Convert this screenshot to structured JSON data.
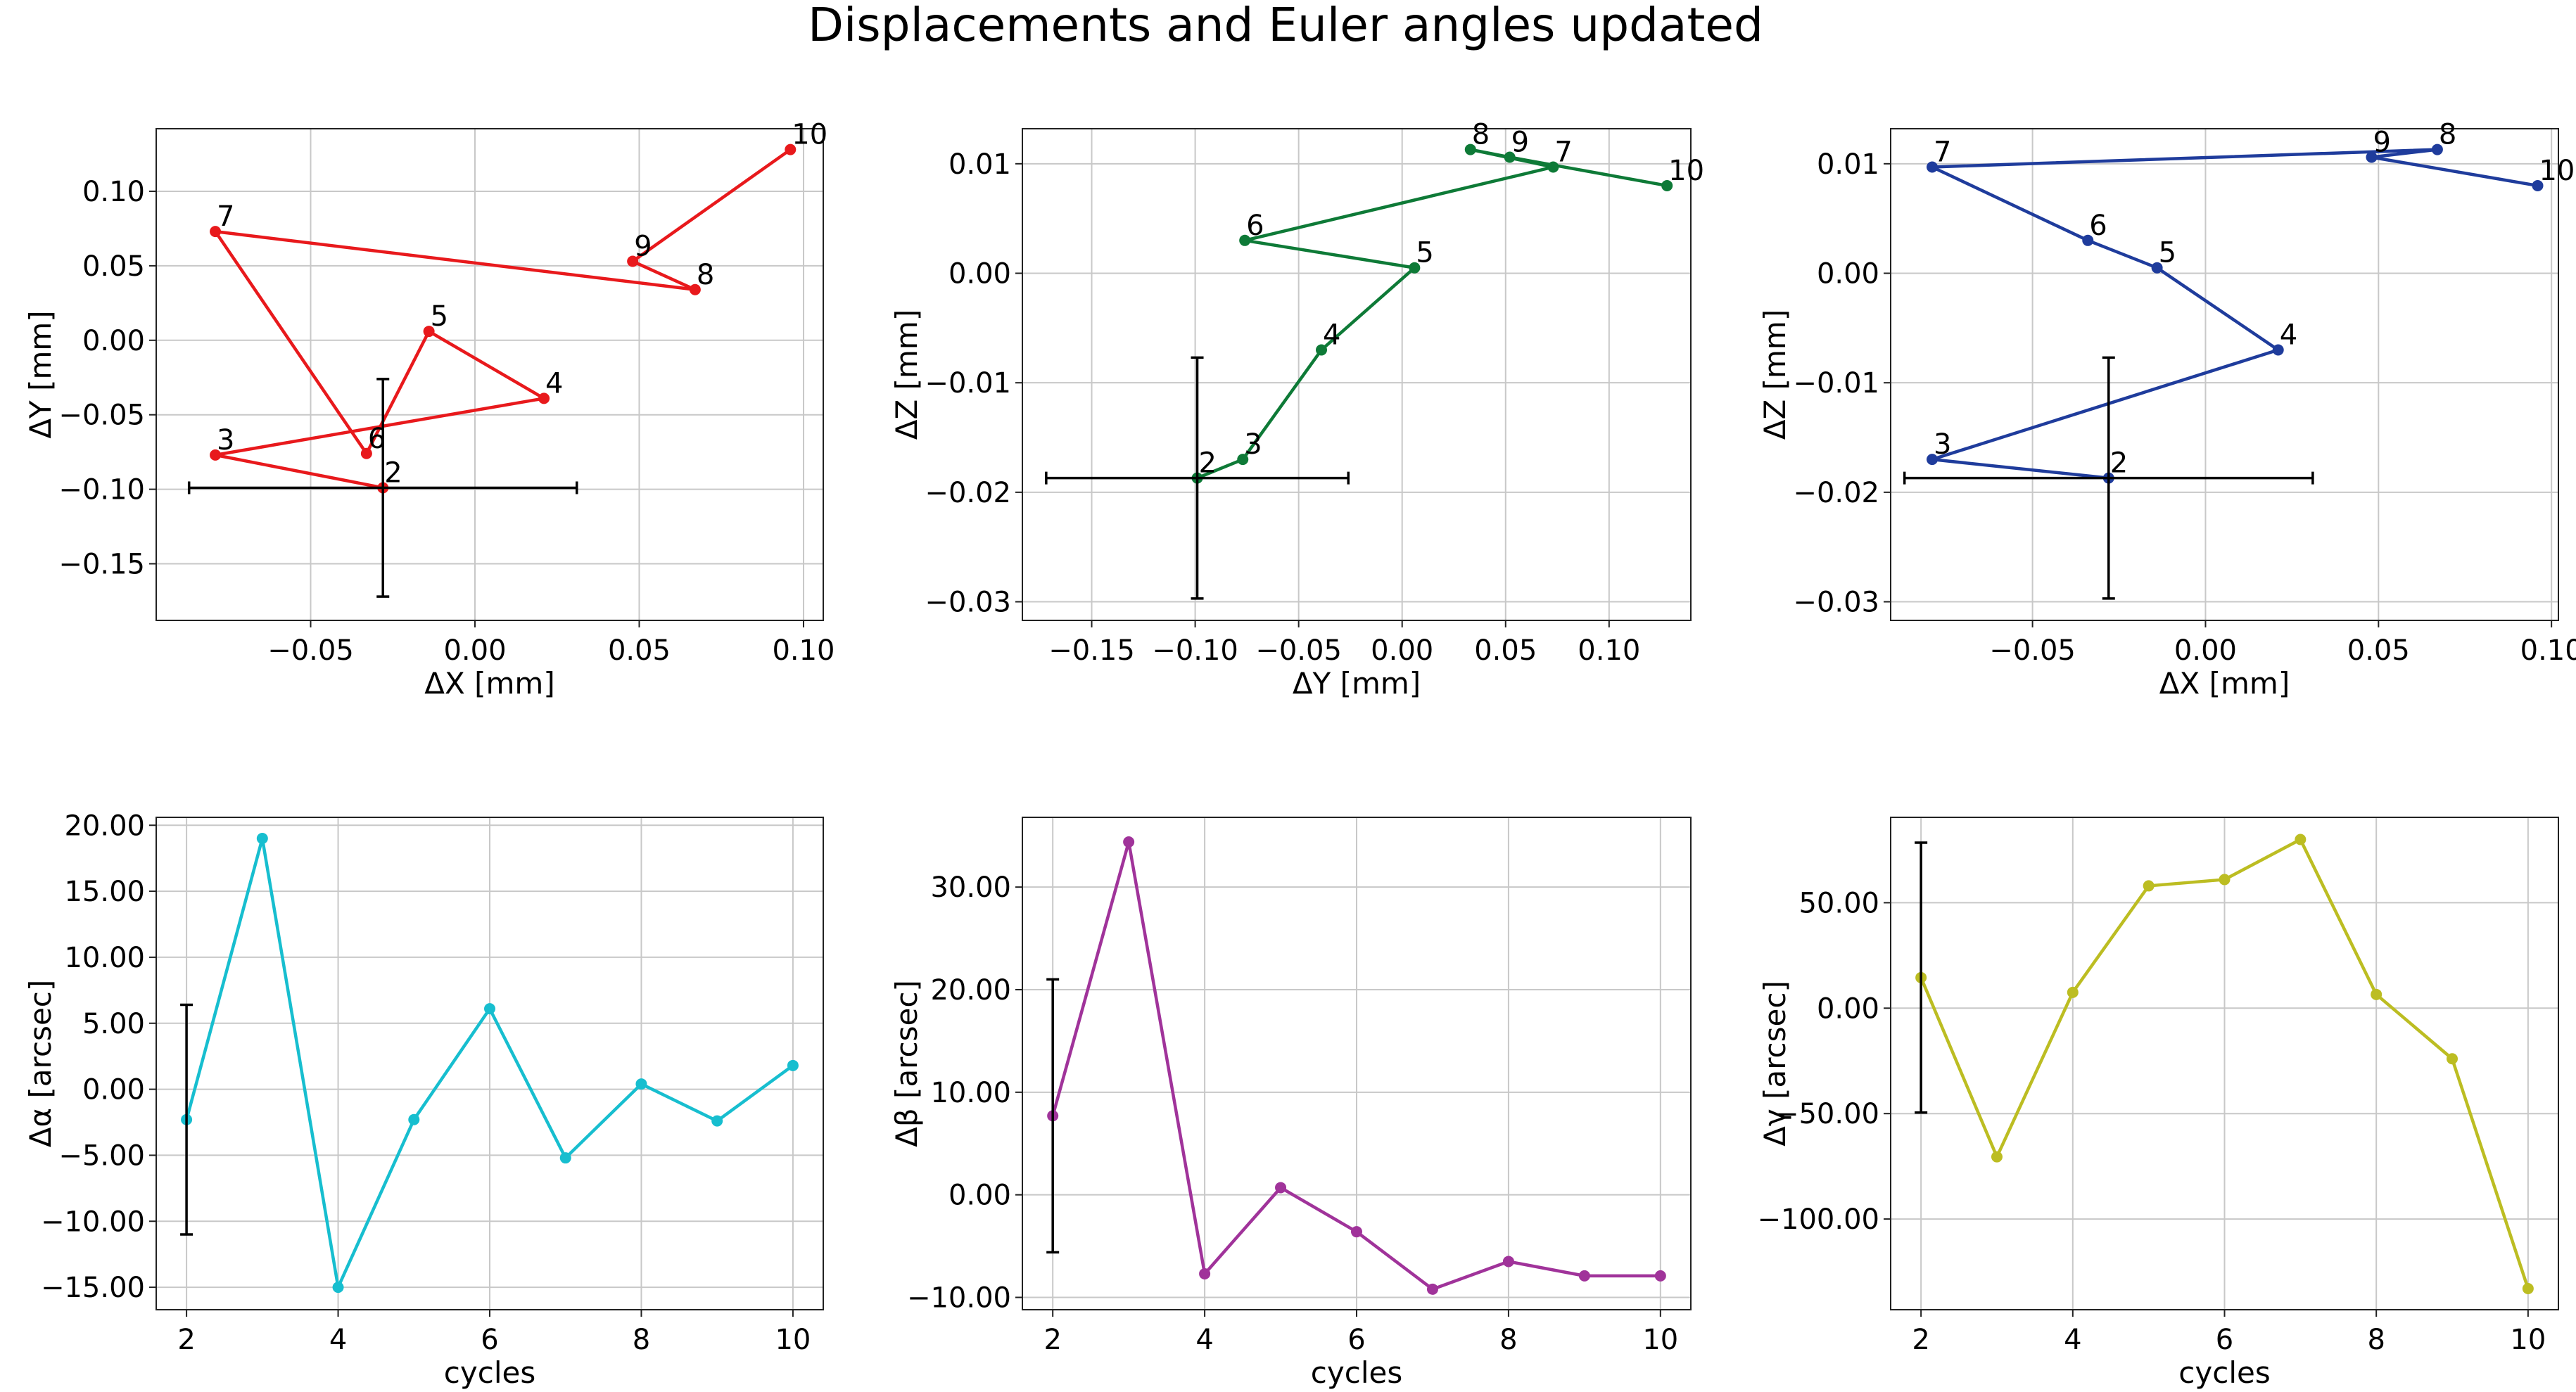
{
  "figure": {
    "title": "Displacements and Euler angles updated"
  },
  "chart_data": [
    {
      "type": "scatter",
      "xlabel": "ΔX [mm]",
      "ylabel": "ΔY [mm]",
      "xlim": [
        -0.097,
        0.106
      ],
      "ylim": [
        -0.188,
        0.142
      ],
      "xticks": [
        -0.05,
        0.0,
        0.05,
        0.1
      ],
      "xtick_labels": [
        "−0.05",
        "0.00",
        "0.05",
        "0.10"
      ],
      "yticks": [
        -0.15,
        -0.1,
        -0.05,
        0.0,
        0.05,
        0.1
      ],
      "ytick_labels": [
        "−0.15",
        "−0.10",
        "−0.05",
        "0.00",
        "0.05",
        "0.10"
      ],
      "grid": true,
      "color": "#e8191c",
      "series": [
        {
          "x": [
            -0.028,
            -0.079,
            0.021,
            -0.014,
            -0.033,
            -0.079,
            0.067,
            0.048,
            0.096
          ],
          "y": [
            -0.099,
            -0.077,
            -0.039,
            0.006,
            -0.076,
            0.073,
            0.034,
            0.053,
            0.128
          ],
          "labels": [
            "2",
            "3",
            "4",
            "5",
            "6",
            "7",
            "8",
            "9",
            "10"
          ]
        }
      ],
      "errorbar": {
        "x": -0.028,
        "y": -0.099,
        "xerr": 0.059,
        "yerr": 0.073
      }
    },
    {
      "type": "scatter",
      "xlabel": "ΔY [mm]",
      "ylabel": "ΔZ [mm]",
      "xlim": [
        -0.1835,
        0.1395
      ],
      "ylim": [
        -0.0317,
        0.0132
      ],
      "xticks": [
        -0.15,
        -0.1,
        -0.05,
        0.0,
        0.05,
        0.1
      ],
      "xtick_labels": [
        "−0.15",
        "−0.10",
        "−0.05",
        "0.00",
        "0.05",
        "0.10"
      ],
      "yticks": [
        -0.03,
        -0.02,
        -0.01,
        0.0,
        0.01
      ],
      "ytick_labels": [
        "−0.03",
        "−0.02",
        "−0.01",
        "0.00",
        "0.01"
      ],
      "grid": true,
      "color": "#0e7a37",
      "series": [
        {
          "x": [
            -0.099,
            -0.077,
            -0.039,
            0.006,
            -0.076,
            0.073,
            0.033,
            0.052,
            0.128
          ],
          "y": [
            -0.0187,
            -0.017,
            -0.007,
            0.0005,
            0.003,
            0.0097,
            0.0113,
            0.0106,
            0.008
          ],
          "labels": [
            "2",
            "3",
            "4",
            "5",
            "6",
            "7",
            "8",
            "9",
            "10"
          ]
        }
      ],
      "errorbar": {
        "x": -0.099,
        "y": -0.0187,
        "xerr": 0.073,
        "yerr": 0.011
      }
    },
    {
      "type": "scatter",
      "xlabel": "ΔX [mm]",
      "ylabel": "ΔZ [mm]",
      "xlim": [
        -0.091,
        0.102
      ],
      "ylim": [
        -0.0317,
        0.0132
      ],
      "xticks": [
        -0.05,
        0.0,
        0.05,
        0.1
      ],
      "xtick_labels": [
        "−0.05",
        "0.00",
        "0.05",
        "0.10"
      ],
      "yticks": [
        -0.03,
        -0.02,
        -0.01,
        0.0,
        0.01
      ],
      "ytick_labels": [
        "−0.03",
        "−0.02",
        "−0.01",
        "0.00",
        "0.01"
      ],
      "grid": true,
      "color": "#1f3c9c",
      "series": [
        {
          "x": [
            -0.028,
            -0.079,
            0.021,
            -0.014,
            -0.034,
            -0.079,
            0.067,
            0.048,
            0.096
          ],
          "y": [
            -0.0187,
            -0.017,
            -0.007,
            0.0005,
            0.003,
            0.0097,
            0.0113,
            0.0106,
            0.008
          ],
          "labels": [
            "2",
            "3",
            "4",
            "5",
            "6",
            "7",
            "8",
            "9",
            "10"
          ]
        }
      ],
      "errorbar": {
        "x": -0.028,
        "y": -0.0187,
        "xerr": 0.059,
        "yerr": 0.011
      }
    },
    {
      "type": "line",
      "xlabel": "cycles",
      "ylabel": "Δα [arcsec]",
      "xlim": [
        1.6,
        10.4
      ],
      "ylim": [
        -16.7,
        20.6
      ],
      "xticks": [
        2,
        4,
        6,
        8,
        10
      ],
      "xtick_labels": [
        "2",
        "4",
        "6",
        "8",
        "10"
      ],
      "yticks": [
        -15,
        -10,
        -5,
        0,
        5,
        10,
        15,
        20
      ],
      "ytick_labels": [
        "−15.00",
        "−10.00",
        "−5.00",
        "0.00",
        "5.00",
        "10.00",
        "15.00",
        "20.00"
      ],
      "grid": true,
      "color": "#17becf",
      "series": [
        {
          "x": [
            2,
            3,
            4,
            5,
            6,
            7,
            8,
            9,
            10
          ],
          "y": [
            -2.3,
            19.0,
            -15.0,
            -2.3,
            6.1,
            -5.2,
            0.4,
            -2.4,
            1.8
          ]
        }
      ],
      "errorbar": {
        "x": 2,
        "y": -2.3,
        "yerr": 8.7
      }
    },
    {
      "type": "line",
      "xlabel": "cycles",
      "ylabel": "Δβ [arcsec]",
      "xlim": [
        1.6,
        10.4
      ],
      "ylim": [
        -11.2,
        36.8
      ],
      "xticks": [
        2,
        4,
        6,
        8,
        10
      ],
      "xtick_labels": [
        "2",
        "4",
        "6",
        "8",
        "10"
      ],
      "yticks": [
        -10,
        0,
        10,
        20,
        30
      ],
      "ytick_labels": [
        "−10.00",
        "0.00",
        "10.00",
        "20.00",
        "30.00"
      ],
      "grid": true,
      "color": "#a0339a",
      "series": [
        {
          "x": [
            2,
            3,
            4,
            5,
            6,
            7,
            8,
            9,
            10
          ],
          "y": [
            7.7,
            34.4,
            -7.7,
            0.7,
            -3.6,
            -9.2,
            -6.5,
            -7.9,
            -7.9
          ]
        }
      ],
      "errorbar": {
        "x": 2,
        "y": 7.7,
        "yerr": 13.3
      }
    },
    {
      "type": "line",
      "xlabel": "cycles",
      "ylabel": "Δγ [arcsec]",
      "xlim": [
        1.6,
        10.4
      ],
      "ylim": [
        -143.0,
        90.5
      ],
      "xticks": [
        2,
        4,
        6,
        8,
        10
      ],
      "xtick_labels": [
        "2",
        "4",
        "6",
        "8",
        "10"
      ],
      "yticks": [
        -100,
        -50,
        0,
        50
      ],
      "ytick_labels": [
        "−100.00",
        "−50.00",
        "0.00",
        "50.00"
      ],
      "grid": true,
      "color": "#bcbd22",
      "series": [
        {
          "x": [
            2,
            3,
            4,
            5,
            6,
            7,
            8,
            9,
            10
          ],
          "y": [
            14.5,
            -70.5,
            7.5,
            58.0,
            61.0,
            80.0,
            6.5,
            -24.0,
            -133.0
          ]
        }
      ],
      "errorbar": {
        "x": 2,
        "y": 14.5,
        "yerr": 64.0
      }
    }
  ]
}
